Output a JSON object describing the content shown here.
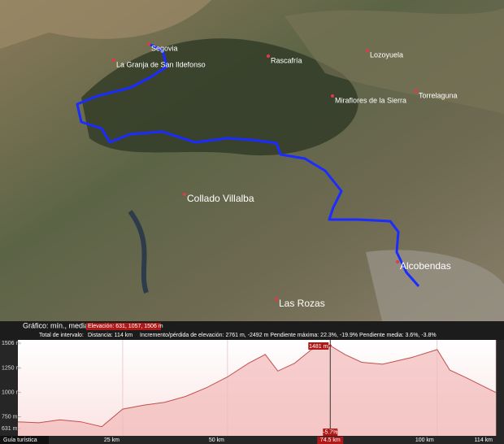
{
  "map": {
    "labels": [
      {
        "text": "Segovia",
        "big": false
      },
      {
        "text": "La Granja de San Ildefonso",
        "big": false
      },
      {
        "text": "Rascafría",
        "big": false
      },
      {
        "text": "Lozoyuela",
        "big": false
      },
      {
        "text": "Miraflores de la Sierra",
        "big": false
      },
      {
        "text": "Torrelaguna",
        "big": false
      },
      {
        "text": "Collado Villalba",
        "big": true
      },
      {
        "text": "Alcobendas",
        "big": true
      },
      {
        "text": "Las Rozas",
        "big": true
      }
    ]
  },
  "info": {
    "line1_label": "Gráfico: mín., media, máx.:",
    "line1_value": "Elevación: 631, 1057, 1506 m",
    "line2_label": "Total de intervalo:",
    "line2_distance": "Distancia: 114 km",
    "line2_stats": "Incremento/pérdida de elevación: 2761 m, -2492 m  Pendiente máxima: 22.3%, -19.9%  Pendiente media: 3.6%, -3.8%"
  },
  "tour_button": "Guía turística",
  "chart_data": {
    "type": "area",
    "x": [
      0,
      5,
      10,
      15,
      20,
      25,
      30,
      35,
      40,
      45,
      50,
      55,
      59,
      62,
      66,
      70,
      74.5,
      78,
      82,
      87,
      94,
      100,
      103,
      107,
      114
    ],
    "values": [
      700,
      690,
      720,
      700,
      650,
      830,
      870,
      900,
      960,
      1050,
      1160,
      1300,
      1390,
      1220,
      1300,
      1440,
      1481,
      1390,
      1310,
      1290,
      1360,
      1440,
      1230,
      1150,
      1000
    ],
    "xlim": [
      0,
      114
    ],
    "ylim": [
      631,
      1506
    ],
    "xticks": [
      {
        "value": 25,
        "label": "25 km"
      },
      {
        "value": 50,
        "label": "50 km"
      },
      {
        "value": 74.5,
        "label": "74.5 km"
      },
      {
        "value": 100,
        "label": "100 km"
      },
      {
        "value": 114,
        "label": "114 km"
      }
    ],
    "yticks": [
      {
        "value": 631,
        "label": "631 m"
      },
      {
        "value": 750,
        "label": "750 m"
      },
      {
        "value": 1000,
        "label": "1000 m"
      },
      {
        "value": 1250,
        "label": "1250 m"
      },
      {
        "value": 1506,
        "label": "1506 m"
      }
    ],
    "color": "#c0504d",
    "cursor": {
      "x": 74.5,
      "value": 1481,
      "value_label": "1481 m",
      "slope": -5.7,
      "slope_label": "-5.7%"
    }
  }
}
